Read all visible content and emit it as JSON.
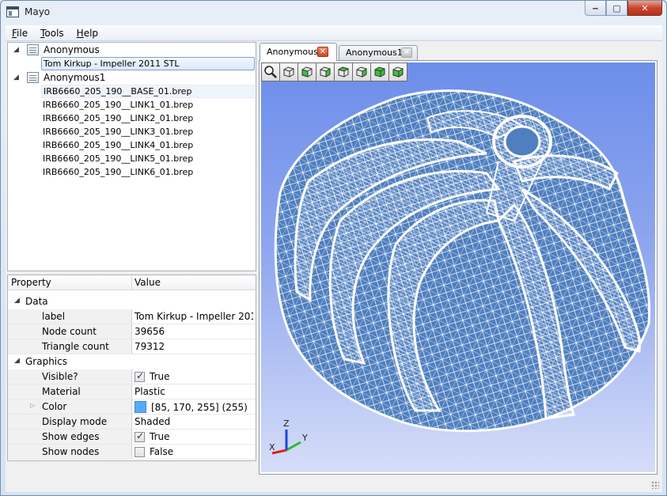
{
  "window": {
    "title": "Mayo",
    "caption": {
      "minimize": "‒",
      "maximize": "▢",
      "close": "✕"
    }
  },
  "menu": [
    {
      "key": "F",
      "rest": "ile"
    },
    {
      "key": "T",
      "rest": "ools"
    },
    {
      "key": "H",
      "rest": "elp"
    }
  ],
  "tree": {
    "documents": [
      {
        "label": "Anonymous",
        "items": [
          "Tom Kirkup - Impeller 2011 STL"
        ]
      },
      {
        "label": "Anonymous1",
        "items": [
          "IRB6660_205_190__BASE_01.brep",
          "IRB6660_205_190__LINK1_01.brep",
          "IRB6660_205_190__LINK2_01.brep",
          "IRB6660_205_190__LINK3_01.brep",
          "IRB6660_205_190__LINK4_01.brep",
          "IRB6660_205_190__LINK5_01.brep",
          "IRB6660_205_190__LINK6_01.brep"
        ]
      }
    ]
  },
  "properties": {
    "header": {
      "property": "Property",
      "value": "Value"
    },
    "groups": {
      "data": "Data",
      "graphics": "Graphics"
    },
    "label": {
      "name": "label",
      "value": "Tom Kirkup - Impeller 201..."
    },
    "node_count": {
      "name": "Node count",
      "value": "39656"
    },
    "triangle_count": {
      "name": "Triangle count",
      "value": "79312"
    },
    "visible": {
      "name": "Visible?",
      "value": "True"
    },
    "material": {
      "name": "Material",
      "value": "Plastic"
    },
    "color": {
      "name": "Color",
      "value": "[85, 170, 255] (255)",
      "swatch": "#55aaff"
    },
    "display_mode": {
      "name": "Display mode",
      "value": "Shaded"
    },
    "show_edges": {
      "name": "Show edges",
      "value": "True"
    },
    "show_nodes": {
      "name": "Show nodes",
      "value": "False"
    }
  },
  "tabs": [
    {
      "label": "Anonymous",
      "active": true
    },
    {
      "label": "Anonymous1",
      "active": false
    }
  ],
  "view_toolbar": [
    "fit-all-icon",
    "view-iso-icon",
    "view-front-icon",
    "view-back-icon",
    "view-left-icon",
    "view-right-icon",
    "view-top-icon",
    "view-bottom-icon"
  ],
  "axis": {
    "x": "X",
    "y": "Y",
    "z": "Z"
  },
  "colors": {
    "mesh": "#4f7fc0",
    "edges": "#ffffff",
    "background_top": "#6c8eea",
    "background_bottom": "#d5ddf8"
  }
}
